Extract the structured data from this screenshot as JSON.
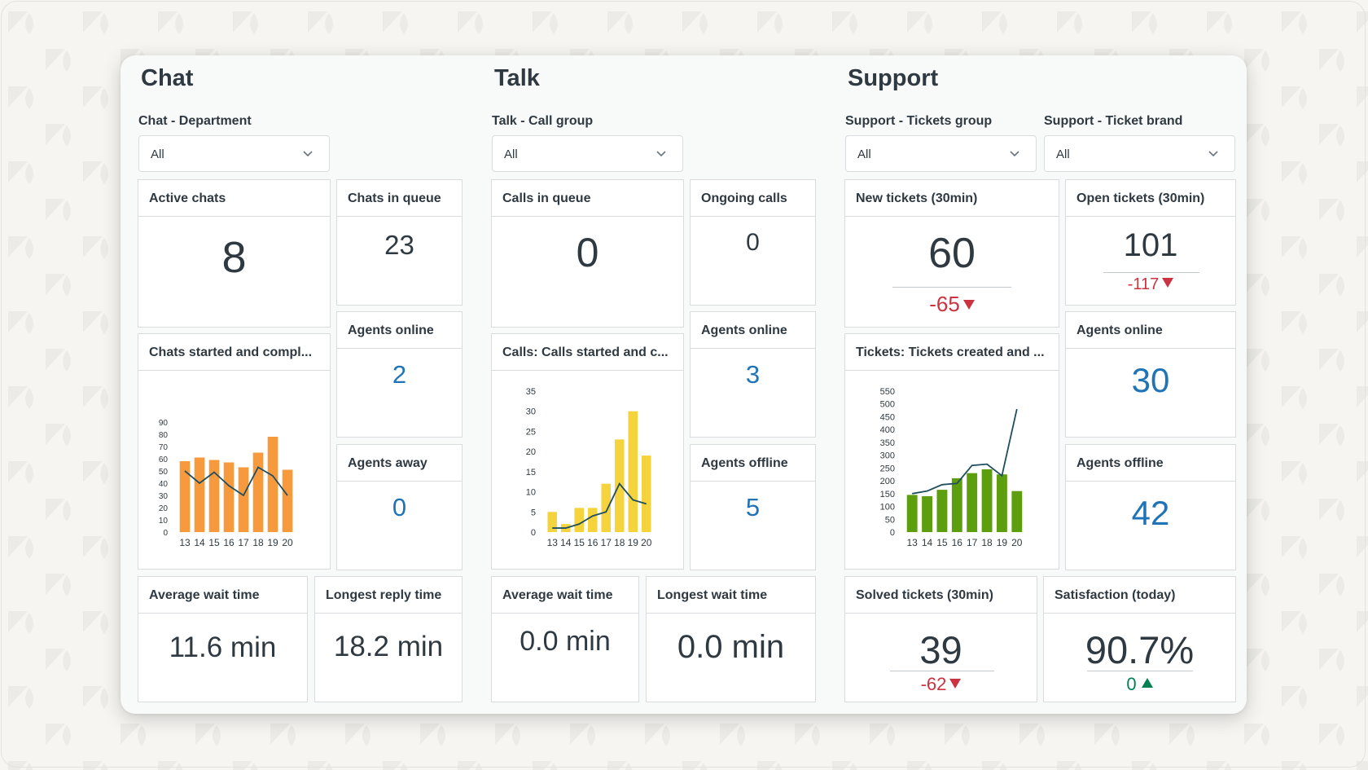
{
  "chat": {
    "title": "Chat",
    "filter": {
      "label": "Chat - Department",
      "value": "All"
    },
    "active_chats": {
      "title": "Active chats",
      "value": "8"
    },
    "chats_in_queue": {
      "title": "Chats in queue",
      "value": "23"
    },
    "agents_online": {
      "title": "Agents online",
      "value": "2"
    },
    "agents_away": {
      "title": "Agents away",
      "value": "0"
    },
    "chart_title": "Chats started and compl...",
    "avg_wait": {
      "title": "Average wait time",
      "value": "11.6 min"
    },
    "longest_reply": {
      "title": "Longest reply time",
      "value": "18.2 min"
    }
  },
  "talk": {
    "title": "Talk",
    "filter": {
      "label": "Talk - Call group",
      "value": "All"
    },
    "calls_in_queue": {
      "title": "Calls in queue",
      "value": "0"
    },
    "ongoing_calls": {
      "title": "Ongoing calls",
      "value": "0"
    },
    "agents_online": {
      "title": "Agents online",
      "value": "3"
    },
    "agents_offline": {
      "title": "Agents offline",
      "value": "5"
    },
    "chart_title": "Calls: Calls started and c...",
    "avg_wait": {
      "title": "Average wait time",
      "value": "0.0 min"
    },
    "longest_wait": {
      "title": "Longest wait time",
      "value": "0.0 min"
    }
  },
  "support": {
    "title": "Support",
    "filter_group": {
      "label": "Support - Tickets group",
      "value": "All"
    },
    "filter_brand": {
      "label": "Support - Ticket brand",
      "value": "All"
    },
    "new_tickets": {
      "title": "New tickets (30min)",
      "value": "60",
      "delta": "-65"
    },
    "open_tickets": {
      "title": "Open tickets (30min)",
      "value": "101",
      "delta": "-117"
    },
    "agents_online": {
      "title": "Agents online",
      "value": "30"
    },
    "agents_offline": {
      "title": "Agents offline",
      "value": "42"
    },
    "chart_title": "Tickets: Tickets created and ...",
    "solved_tickets": {
      "title": "Solved tickets (30min)",
      "value": "39",
      "delta": "-62"
    },
    "satisfaction": {
      "title": "Satisfaction (today)",
      "value": "90.7%",
      "delta": "0"
    }
  },
  "colors": {
    "chat_bar": "#f79a3e",
    "talk_bar": "#f5d33c",
    "support_bar": "#5d9e0f",
    "line": "#1f4e5f",
    "value_blue": "#1f73b7",
    "negative": "#cc3340",
    "positive": "#038153"
  },
  "icons": {
    "select": "chevron-down-icon",
    "decrease": "triangle-down-icon",
    "increase": "triangle-up-icon"
  },
  "chart_data": [
    {
      "type": "bar",
      "categories": [
        "13",
        "14",
        "15",
        "16",
        "17",
        "18",
        "19",
        "20"
      ],
      "series": [
        {
          "type": "bar",
          "values": [
            58,
            61,
            59,
            57,
            53,
            65,
            78,
            51
          ]
        },
        {
          "type": "line",
          "values": [
            50,
            40,
            49,
            38,
            30,
            53,
            46,
            30
          ]
        }
      ],
      "yticks": [
        0,
        10,
        20,
        30,
        40,
        50,
        60,
        70,
        80,
        90
      ],
      "ylim": [
        0,
        90
      ]
    },
    {
      "type": "bar",
      "categories": [
        "13",
        "14",
        "15",
        "16",
        "17",
        "18",
        "19",
        "20"
      ],
      "series": [
        {
          "type": "bar",
          "values": [
            5,
            2,
            6,
            6,
            12,
            23,
            30,
            19
          ]
        },
        {
          "type": "line",
          "values": [
            1,
            1,
            2,
            4,
            5,
            12,
            8,
            7
          ]
        }
      ],
      "yticks": [
        0,
        5,
        10,
        15,
        20,
        25,
        30,
        35
      ],
      "ylim": [
        0,
        35
      ]
    },
    {
      "type": "bar",
      "categories": [
        "13",
        "14",
        "15",
        "16",
        "17",
        "18",
        "19",
        "20"
      ],
      "series": [
        {
          "type": "bar",
          "values": [
            145,
            140,
            165,
            210,
            230,
            245,
            225,
            160
          ]
        },
        {
          "type": "line",
          "values": [
            150,
            160,
            185,
            190,
            260,
            265,
            220,
            480
          ]
        }
      ],
      "yticks": [
        0,
        50,
        100,
        150,
        200,
        250,
        300,
        350,
        400,
        450,
        500,
        550
      ],
      "ylim": [
        0,
        550
      ]
    }
  ]
}
